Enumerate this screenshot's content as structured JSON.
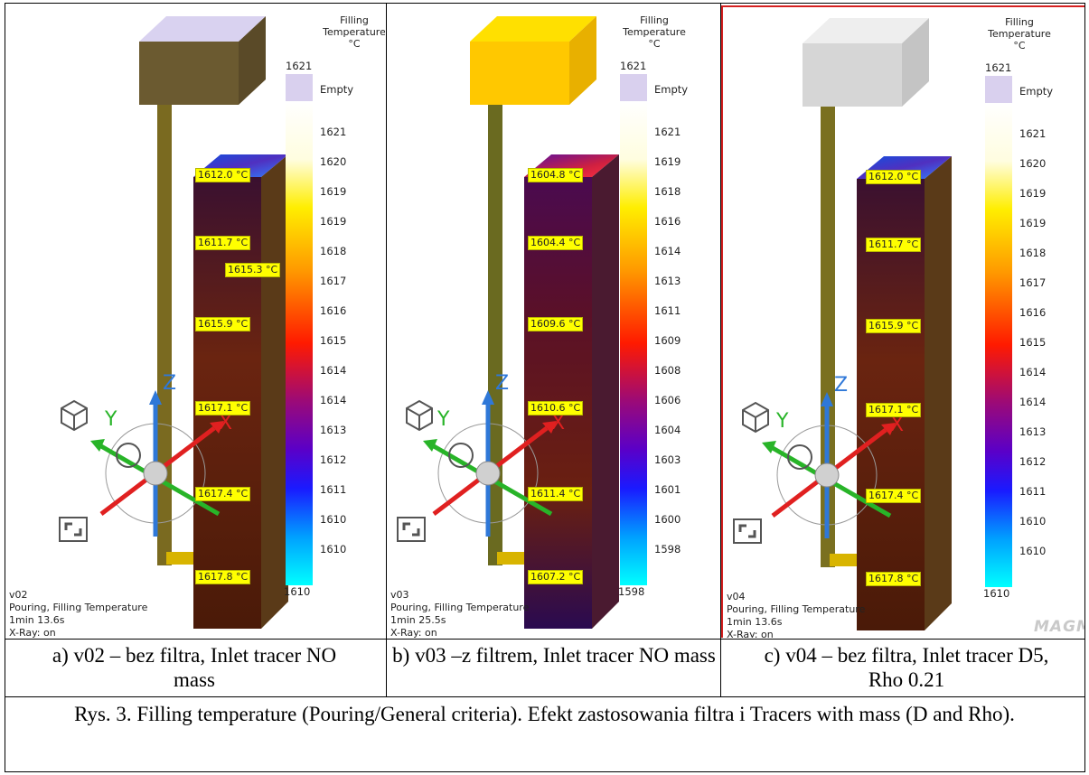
{
  "panels": [
    {
      "id": "v02",
      "legend_title": [
        "Filling",
        "Temperature",
        "°C"
      ],
      "legend_max": "1621",
      "legend_empty": "Empty",
      "legend_ticks": [
        "1621",
        "1620",
        "1619",
        "1619",
        "1618",
        "1617",
        "1616",
        "1615",
        "1614",
        "1614",
        "1613",
        "1612",
        "1611",
        "1610",
        "1610"
      ],
      "legend_min": "1610",
      "tags": [
        "1612.0 °C",
        "1611.7 °C",
        "1615.3 °C",
        "1615.9 °C",
        "1617.1 °C",
        "1617.4 °C",
        "1617.8 °C"
      ],
      "info": [
        "v02",
        "Pouring, Filling Temperature",
        "1min 13.6s",
        "X-Ray: on"
      ],
      "axes": {
        "z": "Z",
        "y": "Y",
        "x": "X"
      }
    },
    {
      "id": "v03",
      "legend_title": [
        "Filling",
        "Temperature",
        "°C"
      ],
      "legend_max": "1621",
      "legend_empty": "Empty",
      "legend_ticks": [
        "1621",
        "1619",
        "1618",
        "1616",
        "1614",
        "1613",
        "1611",
        "1609",
        "1608",
        "1606",
        "1604",
        "1603",
        "1601",
        "1600",
        "1598"
      ],
      "legend_min": "1598",
      "tags": [
        "1604.8 °C",
        "1604.4 °C",
        "1609.6 °C",
        "1610.6 °C",
        "1611.4 °C",
        "1607.2 °C"
      ],
      "info": [
        "v03",
        "Pouring, Filling Temperature",
        "1min 25.5s",
        "X-Ray: on"
      ],
      "axes": {
        "z": "Z",
        "y": "Y",
        "x": "X"
      }
    },
    {
      "id": "v04",
      "legend_title": [
        "Filling",
        "Temperature",
        "°C"
      ],
      "legend_max": "1621",
      "legend_empty": "Empty",
      "legend_ticks": [
        "1621",
        "1620",
        "1619",
        "1619",
        "1618",
        "1617",
        "1616",
        "1615",
        "1614",
        "1614",
        "1613",
        "1612",
        "1611",
        "1610",
        "1610"
      ],
      "legend_min": "1610",
      "tags": [
        "1612.0 °C",
        "1611.7 °C",
        "1615.9 °C",
        "1617.1 °C",
        "1617.4 °C",
        "1617.8 °C"
      ],
      "info": [
        "v04",
        "Pouring, Filling Temperature",
        "1min 13.6s",
        "X-Ray: on"
      ],
      "axes": {
        "z": "Z",
        "y": "Y",
        "x": "X"
      },
      "logo": "MAGMA"
    }
  ],
  "captions": [
    "a) v02 – bez filtra, Inlet tracer NO mass",
    "b) v03 –z filtrem, Inlet tracer NO mass",
    "c) v04 – bez filtra, Inlet tracer D5, Rho 0.21"
  ],
  "figure_caption": "Rys. 3. Filling temperature (Pouring/General criteria). Efekt zastosowania filtra i Tracers with mass (D and Rho).",
  "colors": {
    "tag_fill": "#ffff00",
    "panel_border_v04": "#d42020",
    "empty_swatch": "#d9d0ee"
  }
}
